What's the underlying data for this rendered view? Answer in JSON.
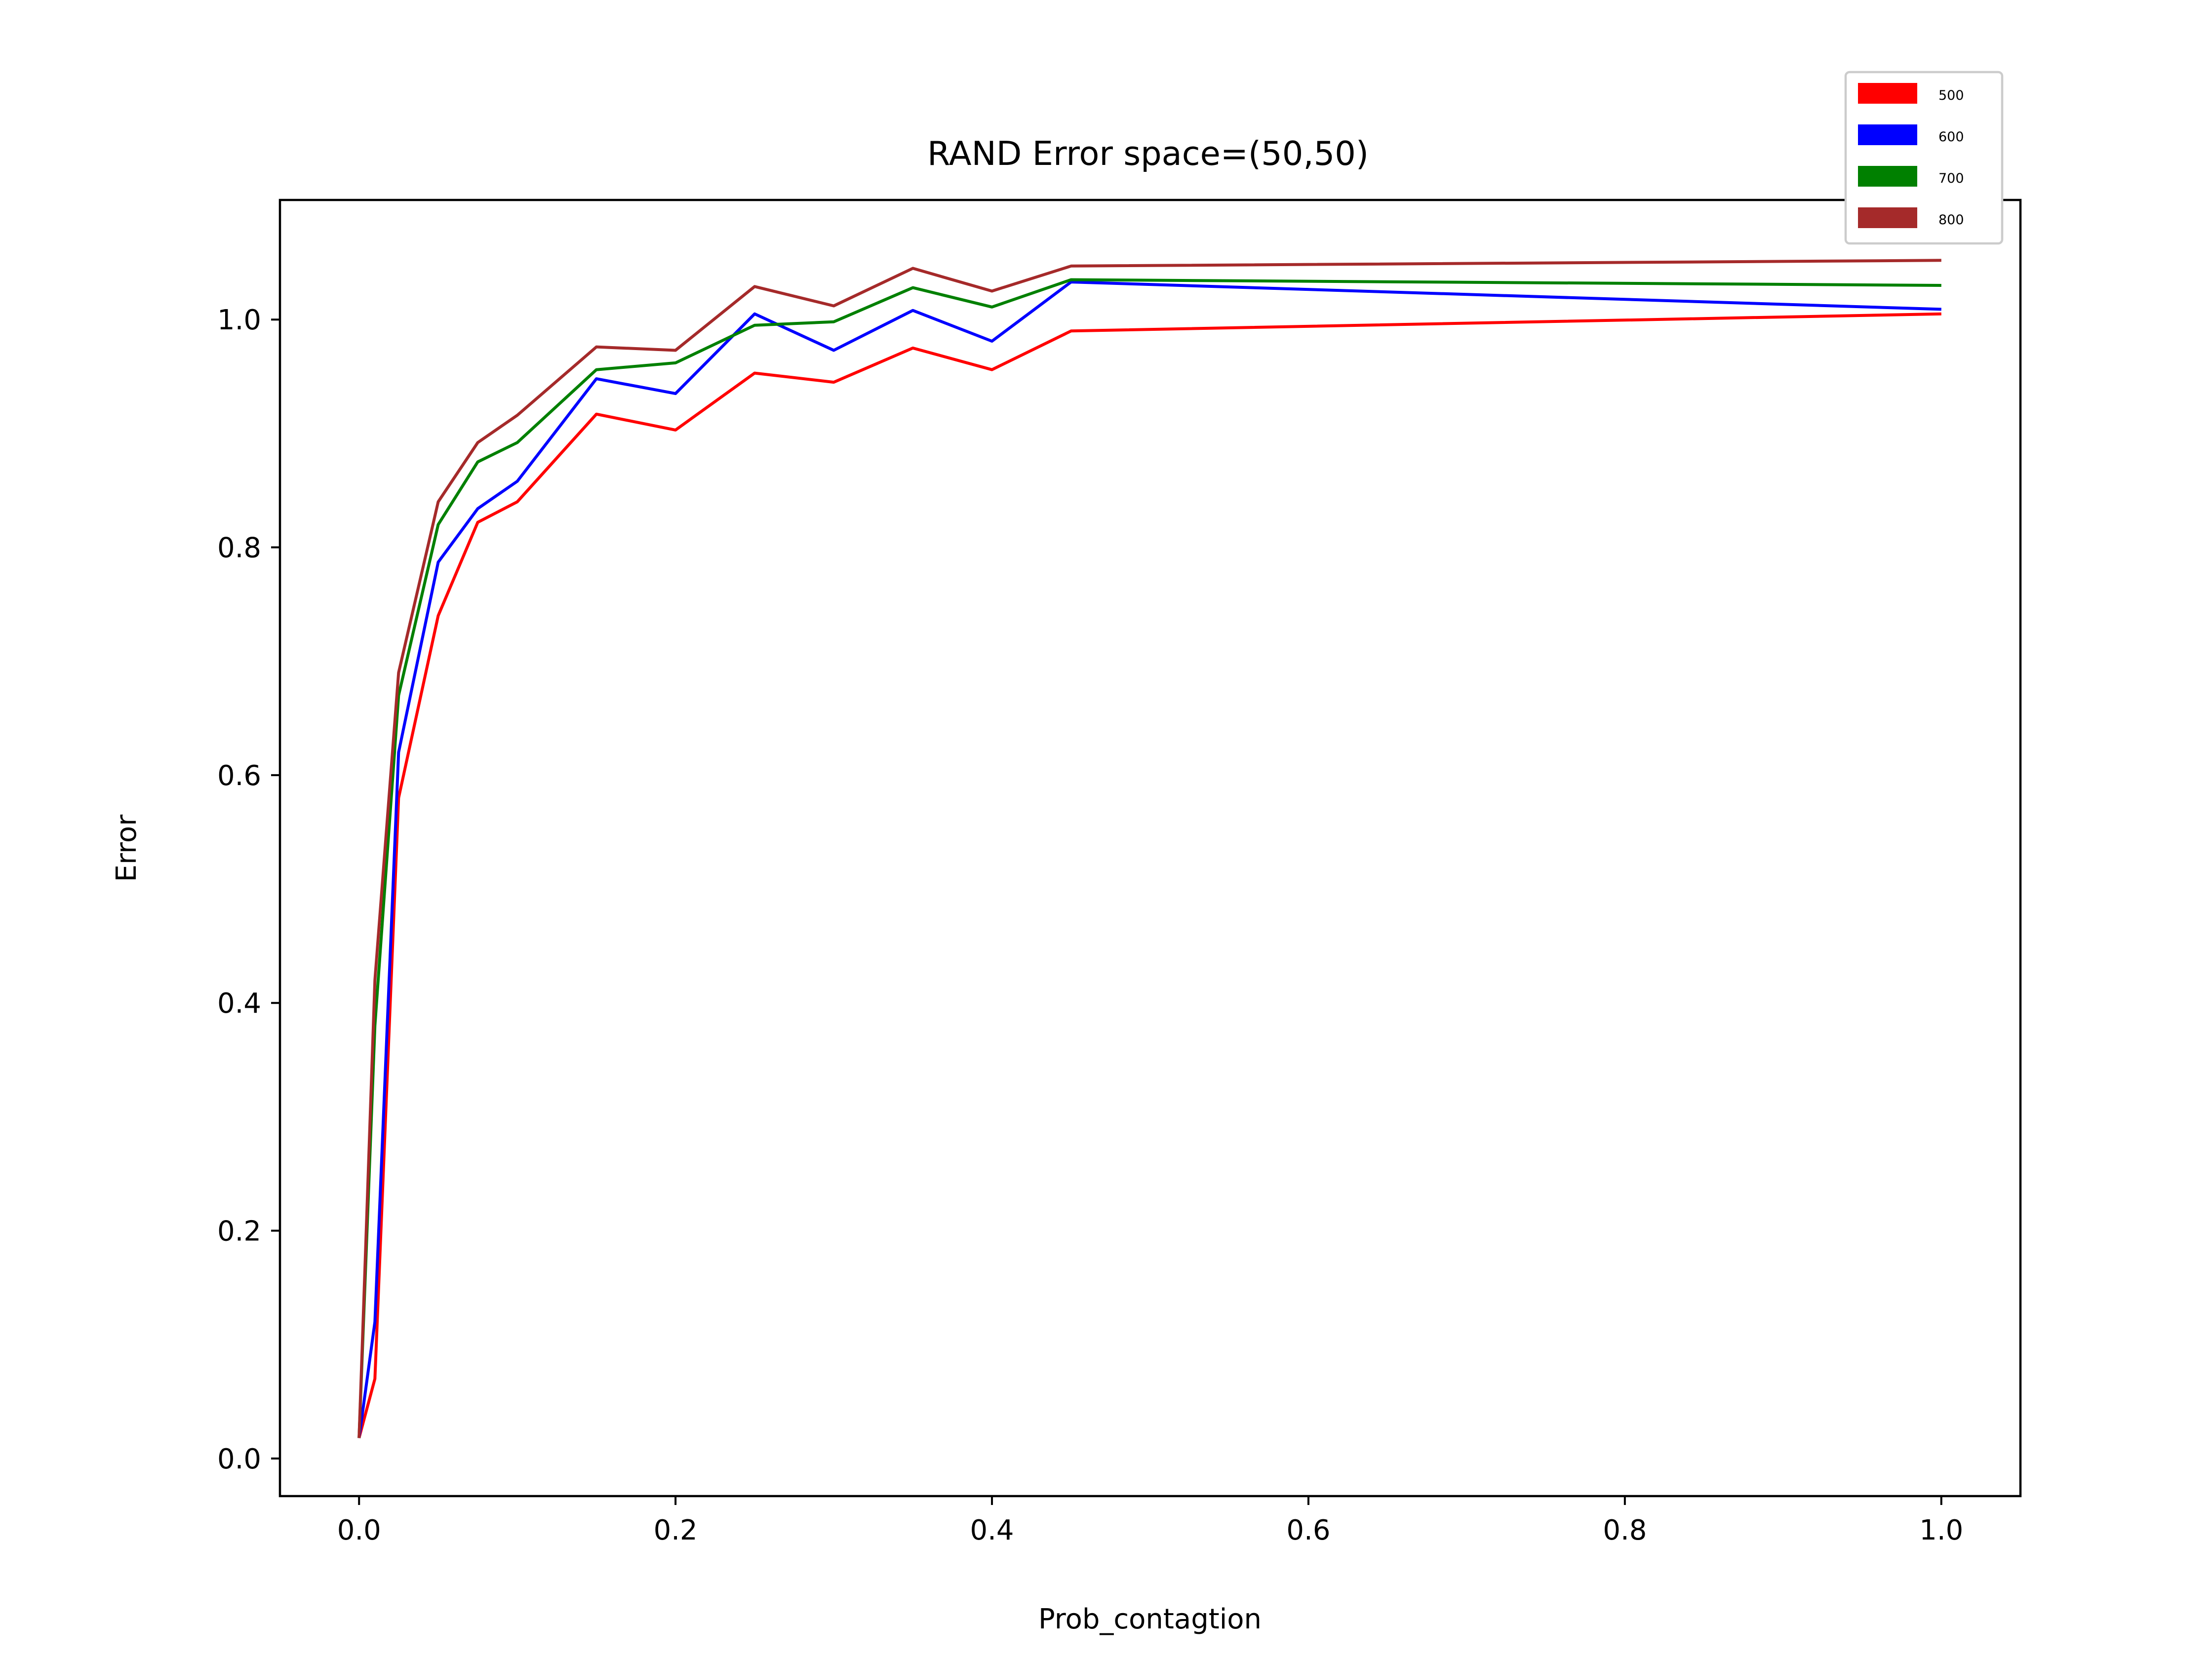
{
  "chart_data": {
    "type": "line",
    "title": "RAND Error space=(50,50)",
    "xlabel": "Prob_contagtion",
    "ylabel": "Error",
    "xlim": [
      -0.05,
      1.05
    ],
    "ylim": [
      -0.033,
      1.105
    ],
    "xticks": [
      "0.0",
      "0.2",
      "0.4",
      "0.6",
      "0.8",
      "1.0"
    ],
    "yticks": [
      "0.0",
      "0.2",
      "0.4",
      "0.6",
      "0.8",
      "1.0"
    ],
    "grid": false,
    "legend_placement": "top-right",
    "x": [
      0.0,
      0.01,
      0.025,
      0.05,
      0.075,
      0.1,
      0.15,
      0.2,
      0.25,
      0.3,
      0.35,
      0.4,
      0.45,
      1.0
    ],
    "series": [
      {
        "name": "500",
        "color": "#ff0000",
        "values": [
          0.018,
          0.07,
          0.58,
          0.74,
          0.822,
          0.84,
          0.917,
          0.903,
          0.953,
          0.945,
          0.975,
          0.956,
          0.99,
          1.005
        ]
      },
      {
        "name": "600",
        "color": "#0000ff",
        "values": [
          0.018,
          0.12,
          0.62,
          0.787,
          0.834,
          0.858,
          0.948,
          0.935,
          1.005,
          0.973,
          1.008,
          0.981,
          1.033,
          1.009
        ]
      },
      {
        "name": "700",
        "color": "#008000",
        "values": [
          0.018,
          0.38,
          0.67,
          0.82,
          0.875,
          0.892,
          0.956,
          0.962,
          0.995,
          0.998,
          1.028,
          1.011,
          1.035,
          1.03
        ]
      },
      {
        "name": "800",
        "color": "#a52a2a",
        "values": [
          0.018,
          0.42,
          0.69,
          0.84,
          0.892,
          0.916,
          0.976,
          0.973,
          1.029,
          1.012,
          1.045,
          1.025,
          1.047,
          1.052
        ]
      }
    ]
  }
}
